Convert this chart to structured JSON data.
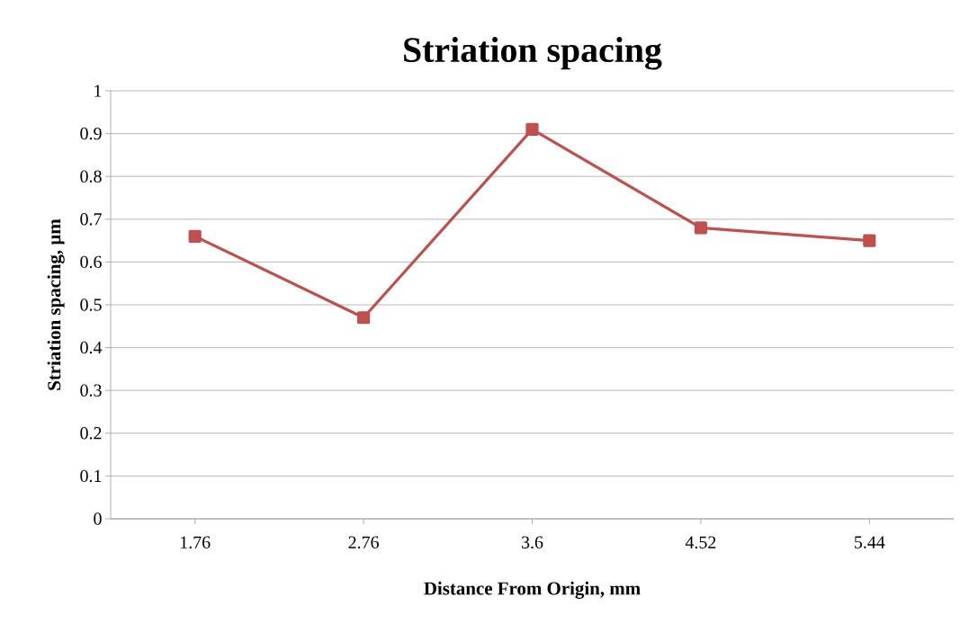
{
  "chart_data": {
    "type": "line",
    "title": "Striation spacing",
    "xlabel": "Distance From Origin, mm",
    "ylabel": "Striation spacing, µm",
    "categories": [
      "1.76",
      "2.76",
      "3.6",
      "4.52",
      "5.44"
    ],
    "series": [
      {
        "color": "#c0504d",
        "values": [
          0.66,
          0.47,
          0.91,
          0.68,
          0.65
        ]
      }
    ],
    "ylim": [
      0,
      1
    ],
    "yticks": [
      0,
      0.1,
      0.2,
      0.3,
      0.4,
      0.5,
      0.6,
      0.7,
      0.8,
      0.9,
      1
    ],
    "grid": "y",
    "marker": "square",
    "line_style": "solid"
  }
}
